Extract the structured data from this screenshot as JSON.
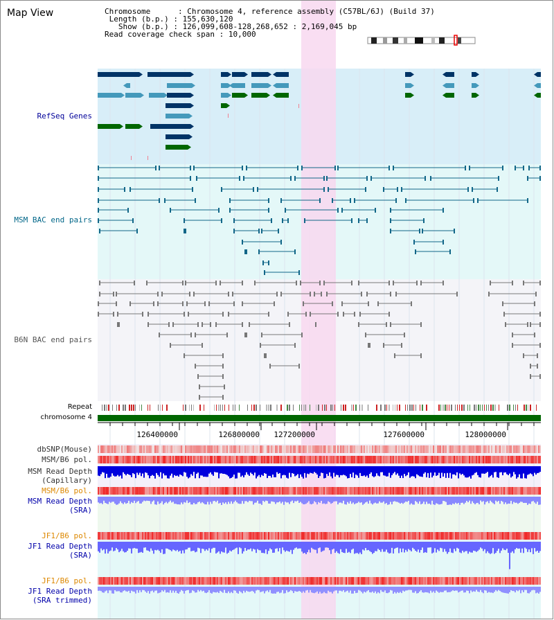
{
  "title": "Map View",
  "info": {
    "chromosome_key": "Chromosome",
    "chromosome_val": "Chromosome 4, reference assembly (C57BL/6J) (Build 37)",
    "length_key": "Length (b.p.)",
    "length_val": "155,630,120",
    "show_key": "Show (b.p.)",
    "show_val": "126,099,608-128,268,652 : 2,169,045 bp",
    "coverage_key": "Read coverage check span",
    "coverage_val": "10,000"
  },
  "tracks": {
    "refseq": "RefSeq Genes",
    "msm_bac": "MSM BAC end pairs",
    "b6n_bac": "B6N BAC end pairs",
    "repeat": "Repeat",
    "chromosome": "chromosome 4",
    "dbsnp": "dbSNP(Mouse)",
    "msm_b6_pol": "MSM/B6 pol.",
    "msm_depth_cap_1": "MSM Read Depth",
    "msm_depth_cap_2": "(Capillary)",
    "msm_b6_pol_sra": "MSM/B6 pol.",
    "msm_depth_sra_1": "MSM Read Depth",
    "msm_depth_sra_2": "(SRA)",
    "jf1_pol_1": "JF1/B6 pol.",
    "jf1_depth_1": "JF1 Read Depth",
    "jf1_depth_1b": "(SRA)",
    "jf1_pol_2": "JF1/B6 pol.",
    "jf1_depth_2": "JF1 Read Depth",
    "jf1_depth_2b": "(SRA trimmed)"
  },
  "axis": {
    "ticks": [
      "126400000",
      "126800000",
      "127200000",
      "127600000",
      "128000000"
    ]
  },
  "colors": {
    "highlight": "#f8d8f0",
    "refseq_bg": "#d8eef8",
    "msm_bg": "#e4f8f8",
    "b6n_bg": "#f4f4f8",
    "chromosome": "#006600",
    "gene_dark": "#003366",
    "gene_mid": "#4499bb",
    "gene_green": "#006600",
    "msm_pair": "#116688",
    "b6n_pair": "#777777",
    "label_refseq": "#000099",
    "label_msm": "#006688",
    "label_orange": "#dd8800",
    "label_blue": "#0000aa",
    "depth_cap": "#0000dd",
    "depth_sra": "#8888ff"
  }
}
